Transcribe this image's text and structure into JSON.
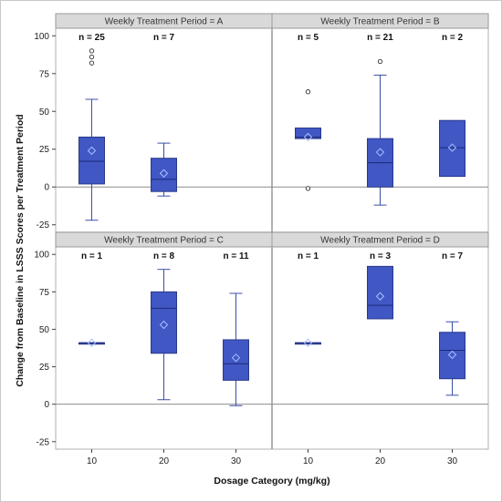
{
  "chart_data": {
    "type": "box",
    "xlabel": "Dosage Category (mg/kg)",
    "ylabel": "Change from Baseline in LSSS Scores per Treatment Period",
    "categories": [
      "10",
      "20",
      "30"
    ],
    "ylim": [
      -30,
      105
    ],
    "yticks": [
      -25,
      0,
      25,
      50,
      75,
      100
    ],
    "reference_line": 0,
    "colors": {
      "box": "#4057c4",
      "mean": "#aac0ff"
    },
    "panels": [
      {
        "title": "Weekly Treatment Period = A",
        "groups": [
          {
            "category": "10",
            "n_label": "n = 25",
            "min": -22,
            "q1": 2,
            "median": 17,
            "q3": 33,
            "max": 58,
            "mean": 24,
            "outliers": [
              82,
              86,
              90
            ]
          },
          {
            "category": "20",
            "n_label": "n = 7",
            "min": -6,
            "q1": -3,
            "median": 5,
            "q3": 19,
            "max": 29,
            "mean": 9,
            "outliers": []
          }
        ]
      },
      {
        "title": "Weekly Treatment Period = B",
        "groups": [
          {
            "category": "10",
            "n_label": "n = 5",
            "min": 32,
            "q1": 32,
            "median": 33,
            "q3": 39,
            "max": 39,
            "mean": 33,
            "outliers": [
              63,
              -1
            ]
          },
          {
            "category": "20",
            "n_label": "n = 21",
            "min": -12,
            "q1": 0,
            "median": 16,
            "q3": 32,
            "max": 74,
            "mean": 23,
            "outliers": [
              83
            ]
          },
          {
            "category": "30",
            "n_label": "n = 2",
            "min": 7,
            "q1": 7,
            "median": 26,
            "q3": 44,
            "max": 44,
            "mean": 26,
            "outliers": []
          }
        ]
      },
      {
        "title": "Weekly Treatment Period = C",
        "groups": [
          {
            "category": "10",
            "n_label": "n = 1",
            "min": 41,
            "q1": 41,
            "median": 41,
            "q3": 41,
            "max": 41,
            "mean": 41,
            "outliers": []
          },
          {
            "category": "20",
            "n_label": "n = 8",
            "min": 3,
            "q1": 34,
            "median": 64,
            "q3": 75,
            "max": 90,
            "mean": 53,
            "outliers": []
          },
          {
            "category": "30",
            "n_label": "n = 11",
            "min": -1,
            "q1": 16,
            "median": 27,
            "q3": 43,
            "max": 74,
            "mean": 31,
            "outliers": []
          }
        ]
      },
      {
        "title": "Weekly Treatment Period = D",
        "groups": [
          {
            "category": "10",
            "n_label": "n = 1",
            "min": 41,
            "q1": 41,
            "median": 41,
            "q3": 41,
            "max": 41,
            "mean": 41,
            "outliers": []
          },
          {
            "category": "20",
            "n_label": "n = 3",
            "min": 57,
            "q1": 57,
            "median": 66,
            "q3": 92,
            "max": 92,
            "mean": 72,
            "outliers": []
          },
          {
            "category": "30",
            "n_label": "n = 7",
            "min": 6,
            "q1": 17,
            "median": 36,
            "q3": 48,
            "max": 55,
            "mean": 33,
            "outliers": []
          }
        ]
      }
    ]
  }
}
